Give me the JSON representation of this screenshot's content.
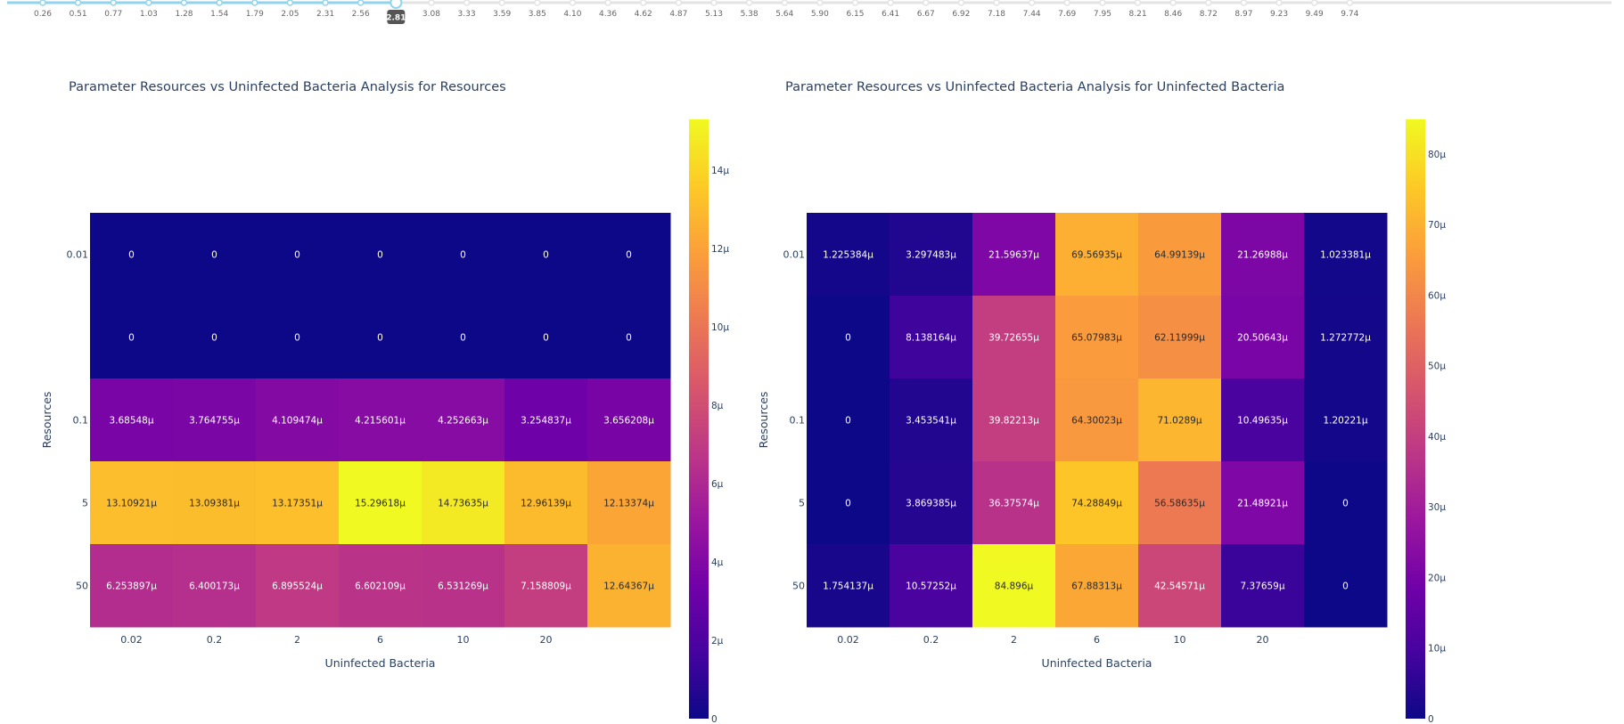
{
  "slider": {
    "ticks": [
      "0.26",
      "0.51",
      "0.77",
      "1.03",
      "1.28",
      "1.54",
      "1.79",
      "2.05",
      "2.31",
      "2.56",
      "2.81",
      "3.08",
      "3.33",
      "3.59",
      "3.85",
      "4.10",
      "4.36",
      "4.62",
      "4.87",
      "5.13",
      "5.38",
      "5.64",
      "5.90",
      "6.15",
      "6.41",
      "6.67",
      "6.92",
      "7.18",
      "7.44",
      "7.69",
      "7.95",
      "8.21",
      "8.46",
      "8.72",
      "8.97",
      "9.23",
      "9.49",
      "9.74"
    ],
    "current_label": "2.81",
    "current_index": 10,
    "colors": {
      "active": "#8fd3ec",
      "inactive": "#e3e3e3",
      "badge": "#555555",
      "tick_text": "#666666"
    }
  },
  "chart_data": [
    {
      "type": "heatmap",
      "title": "Parameter Resources vs Uninfected Bacteria Analysis for Resources",
      "xlabel": "Uninfected Bacteria",
      "ylabel": "Resources",
      "x_tick_labels": [
        "0.02",
        "0.2",
        "2",
        "6",
        "10",
        "20",
        ""
      ],
      "y_tick_labels": [
        "0.01",
        "",
        "0.1",
        "5",
        "50"
      ],
      "values": [
        [
          0,
          0,
          0,
          0,
          0,
          0,
          0
        ],
        [
          0,
          0,
          0,
          0,
          0,
          0,
          0
        ],
        [
          3.68548,
          3.764755,
          4.109474,
          4.215601,
          4.252663,
          3.254837,
          3.656208
        ],
        [
          13.10921,
          13.09381,
          13.17351,
          15.29618,
          14.73635,
          12.96139,
          12.13374
        ],
        [
          6.253897,
          6.400173,
          6.895524,
          6.602109,
          6.531269,
          7.158809,
          12.64367
        ]
      ],
      "cell_labels": [
        [
          "0",
          "0",
          "0",
          "0",
          "0",
          "0",
          "0"
        ],
        [
          "0",
          "0",
          "0",
          "0",
          "0",
          "0",
          "0"
        ],
        [
          "3.68548μ",
          "3.764755μ",
          "4.109474μ",
          "4.215601μ",
          "4.252663μ",
          "3.254837μ",
          "3.656208μ"
        ],
        [
          "13.10921μ",
          "13.09381μ",
          "13.17351μ",
          "15.29618μ",
          "14.73635μ",
          "12.96139μ",
          "12.13374μ"
        ],
        [
          "6.253897μ",
          "6.400173μ",
          "6.895524μ",
          "6.602109μ",
          "6.531269μ",
          "7.158809μ",
          "12.64367μ"
        ]
      ],
      "zmin": 0,
      "zmax": 15.29618,
      "colorbar_ticks": [
        0,
        2,
        4,
        6,
        8,
        10,
        12,
        14
      ],
      "colorbar_tick_labels": [
        "0",
        "2μ",
        "4μ",
        "6μ",
        "8μ",
        "10μ",
        "12μ",
        "14μ"
      ],
      "colorscale": "plasma"
    },
    {
      "type": "heatmap",
      "title": "Parameter Resources vs Uninfected Bacteria Analysis for Uninfected Bacteria",
      "xlabel": "Uninfected Bacteria",
      "ylabel": "Resources",
      "x_tick_labels": [
        "0.02",
        "0.2",
        "2",
        "6",
        "10",
        "20",
        ""
      ],
      "y_tick_labels": [
        "0.01",
        "",
        "0.1",
        "5",
        "50"
      ],
      "values": [
        [
          1.225384,
          3.297483,
          21.59637,
          69.56935,
          64.99139,
          21.26988,
          1.023381
        ],
        [
          0,
          8.138164,
          39.72655,
          65.07983,
          62.11999,
          20.50643,
          1.272772
        ],
        [
          0,
          3.453541,
          39.82213,
          64.30023,
          71.0289,
          10.49635,
          1.20221
        ],
        [
          0,
          3.869385,
          36.37574,
          74.28849,
          56.58635,
          21.48921,
          0
        ],
        [
          1.754137,
          10.57252,
          84.896,
          67.88313,
          42.54571,
          7.37659,
          0
        ]
      ],
      "cell_labels": [
        [
          "1.225384μ",
          "3.297483μ",
          "21.59637μ",
          "69.56935μ",
          "64.99139μ",
          "21.26988μ",
          "1.023381μ"
        ],
        [
          "0",
          "8.138164μ",
          "39.72655μ",
          "65.07983μ",
          "62.11999μ",
          "20.50643μ",
          "1.272772μ"
        ],
        [
          "0",
          "3.453541μ",
          "39.82213μ",
          "64.30023μ",
          "71.0289μ",
          "10.49635μ",
          "1.20221μ"
        ],
        [
          "0",
          "3.869385μ",
          "36.37574μ",
          "74.28849μ",
          "56.58635μ",
          "21.48921μ",
          "0"
        ],
        [
          "1.754137μ",
          "10.57252μ",
          "84.896μ",
          "67.88313μ",
          "42.54571μ",
          "7.37659μ",
          "0"
        ]
      ],
      "zmin": 0,
      "zmax": 84.896,
      "colorbar_ticks": [
        0,
        10,
        20,
        30,
        40,
        50,
        60,
        70,
        80
      ],
      "colorbar_tick_labels": [
        "0",
        "10μ",
        "20μ",
        "30μ",
        "40μ",
        "50μ",
        "60μ",
        "70μ",
        "80μ"
      ],
      "colorscale": "plasma"
    }
  ]
}
